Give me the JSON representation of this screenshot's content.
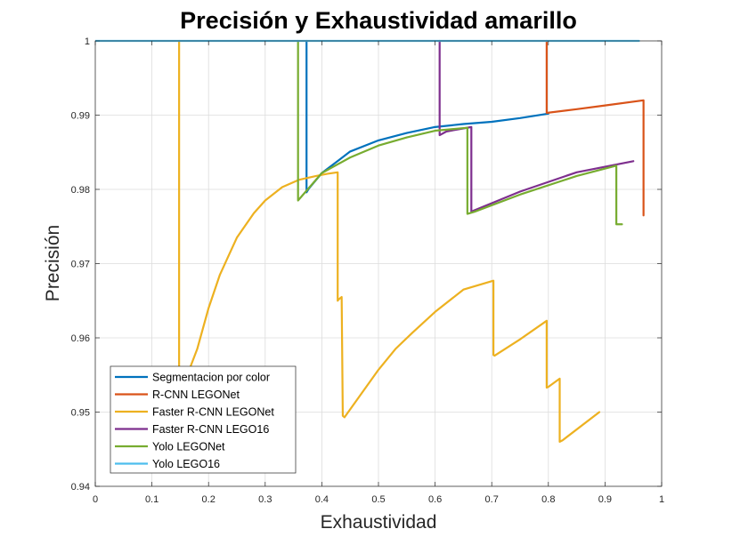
{
  "chart_data": {
    "type": "line",
    "title": "Precisión y Exhaustividad amarillo",
    "xlabel": "Exhaustividad",
    "ylabel": "Precisión",
    "xlim": [
      0,
      1
    ],
    "ylim": [
      0.94,
      1.0
    ],
    "xticks": [
      0,
      0.1,
      0.2,
      0.3,
      0.4,
      0.5,
      0.6,
      0.7,
      0.8,
      0.9,
      1
    ],
    "xtick_labels": [
      "0",
      "0.1",
      "0.2",
      "0.3",
      "0.4",
      "0.5",
      "0.6",
      "0.7",
      "0.8",
      "0.9",
      "1"
    ],
    "yticks": [
      0.94,
      0.95,
      0.96,
      0.97,
      0.98,
      0.99,
      1.0
    ],
    "ytick_labels": [
      "0.94",
      "0.95",
      "0.96",
      "0.97",
      "0.98",
      "0.99",
      "1"
    ],
    "grid": true,
    "legend_position": "bottom-left",
    "series": [
      {
        "name": "Segmentacion por color",
        "color": "#0072BD",
        "x": [
          0.373,
          0.373,
          0.377,
          0.4,
          0.45,
          0.5,
          0.55,
          0.6,
          0.65,
          0.7,
          0.75,
          0.8
        ],
        "y": [
          1.0,
          0.9796,
          0.9801,
          0.9822,
          0.9851,
          0.9866,
          0.9876,
          0.9884,
          0.9888,
          0.9891,
          0.9896,
          0.9902
        ]
      },
      {
        "name": "R-CNN LEGONet",
        "color": "#D95319",
        "x": [
          0.797,
          0.797,
          0.85,
          0.9,
          0.968,
          0.968
        ],
        "y": [
          1.0,
          0.9903,
          0.9908,
          0.9913,
          0.992,
          0.9765
        ]
      },
      {
        "name": "Faster R-CNN LEGONet",
        "color": "#EDB120",
        "x": [
          0.148,
          0.148,
          0.15,
          0.16,
          0.18,
          0.2,
          0.22,
          0.25,
          0.28,
          0.3,
          0.33,
          0.36,
          0.39,
          0.41,
          0.428,
          0.428,
          0.43,
          0.435,
          0.437,
          0.44,
          0.47,
          0.5,
          0.53,
          0.56,
          0.6,
          0.65,
          0.703,
          0.703,
          0.705,
          0.75,
          0.797,
          0.797,
          0.8,
          0.82,
          0.82,
          0.825,
          0.89
        ],
        "y": [
          1.0,
          0.9555,
          0.953,
          0.9545,
          0.9585,
          0.964,
          0.9685,
          0.9735,
          0.9768,
          0.9785,
          0.9803,
          0.9813,
          0.9818,
          0.9821,
          0.9823,
          0.965,
          0.9652,
          0.9655,
          0.9495,
          0.9493,
          0.9525,
          0.9557,
          0.9585,
          0.9607,
          0.9635,
          0.9665,
          0.9677,
          0.9577,
          0.9576,
          0.9598,
          0.9623,
          0.9533,
          0.9534,
          0.9545,
          0.946,
          0.9462,
          0.95
        ]
      },
      {
        "name": "Faster R-CNN LEGO16",
        "color": "#7E2F8E",
        "x": [
          0.608,
          0.608,
          0.62,
          0.664,
          0.664,
          0.67,
          0.75,
          0.85,
          0.95
        ],
        "y": [
          1.0,
          0.9873,
          0.9878,
          0.9884,
          0.977,
          0.9772,
          0.9797,
          0.9823,
          0.9838
        ]
      },
      {
        "name": "Yolo LEGONet",
        "color": "#77AC30",
        "x": [
          0.358,
          0.358,
          0.4,
          0.45,
          0.5,
          0.55,
          0.6,
          0.657,
          0.657,
          0.67,
          0.75,
          0.85,
          0.92,
          0.92,
          0.93
        ],
        "y": [
          1.0,
          0.9785,
          0.9822,
          0.9843,
          0.9859,
          0.987,
          0.9879,
          0.9883,
          0.9767,
          0.977,
          0.9793,
          0.9818,
          0.9832,
          0.9753,
          0.9753
        ]
      },
      {
        "name": "Yolo LEGO16",
        "color": "#4DBEEE",
        "x": [
          0.0,
          0.96
        ],
        "y": [
          1.0,
          1.0
        ]
      }
    ]
  }
}
